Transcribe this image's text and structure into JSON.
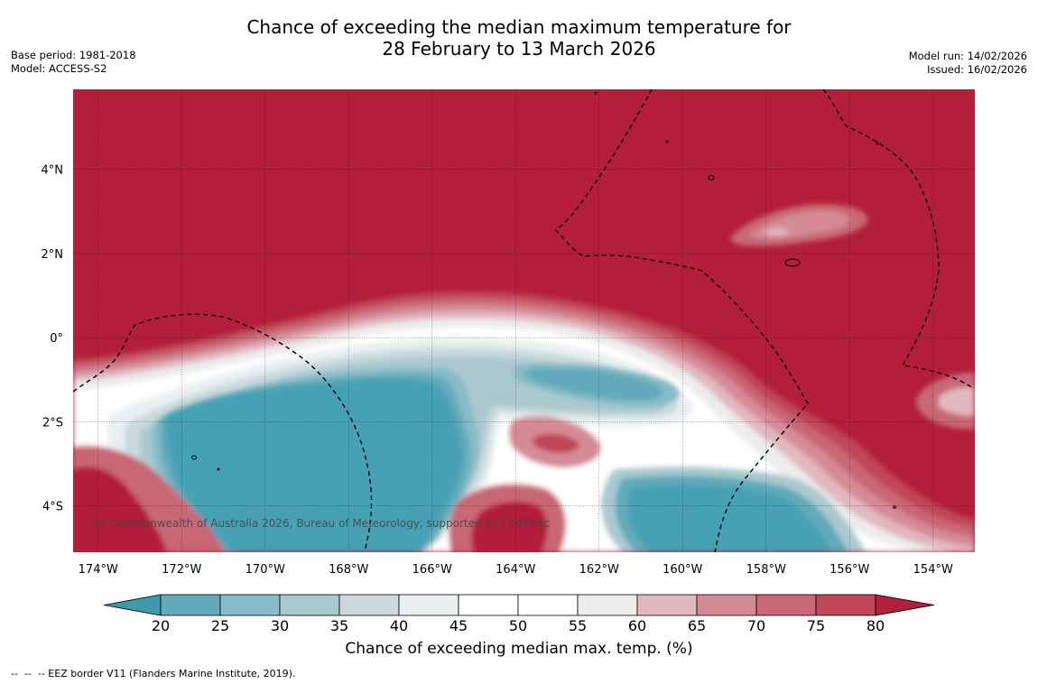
{
  "header": {
    "title_line1": "Chance of exceeding the median maximum temperature for",
    "title_line2": "28 February to 13 March 2026",
    "base_period": "Base period: 1981-2018",
    "model": "Model: ACCESS-S2",
    "model_run": "Model run: 14/02/2026",
    "issued": "Issued: 16/02/2026"
  },
  "map": {
    "lon_range": [
      -174.6,
      -153.0
    ],
    "lat_range": [
      -5.1,
      5.9
    ],
    "lon_ticks": [
      "174°W",
      "172°W",
      "170°W",
      "168°W",
      "166°W",
      "164°W",
      "162°W",
      "160°W",
      "158°W",
      "156°W",
      "154°W"
    ],
    "lon_tick_values": [
      -174,
      -172,
      -170,
      -168,
      -166,
      -164,
      -162,
      -160,
      -158,
      -156,
      -154
    ],
    "lat_ticks": [
      "4°N",
      "2°N",
      "0°",
      "2°S",
      "4°S"
    ],
    "lat_tick_values": [
      4,
      2,
      0,
      -2,
      -4
    ],
    "copyright": "© Commonwealth of Australia 2026, Bureau of Meteorology, supported by COSPPac",
    "colors": {
      "hot": "#b31e3a",
      "cool": "#46a1b4"
    }
  },
  "colorbar": {
    "ticks": [
      "20",
      "25",
      "30",
      "35",
      "40",
      "45",
      "50",
      "55",
      "60",
      "65",
      "70",
      "75",
      "80"
    ],
    "bins": [
      {
        "range": "<20",
        "color": "#3d99ac"
      },
      {
        "range": "20-25",
        "color": "#62aabb"
      },
      {
        "range": "25-30",
        "color": "#86bbc7"
      },
      {
        "range": "30-35",
        "color": "#aac9cf"
      },
      {
        "range": "35-40",
        "color": "#cbd9dd"
      },
      {
        "range": "40-45",
        "color": "#e8f0f1"
      },
      {
        "range": "45-50",
        "color": "#ffffff"
      },
      {
        "range": "50-55",
        "color": "#ffffff"
      },
      {
        "range": "55-60",
        "color": "#ececec"
      },
      {
        "range": "60-65",
        "color": "#e2b8bf"
      },
      {
        "range": "65-70",
        "color": "#d58b96"
      },
      {
        "range": "70-75",
        "color": "#c96874"
      },
      {
        "range": "75-80",
        "color": "#bf4757"
      },
      {
        "range": ">80",
        "color": "#b31e3a"
      }
    ],
    "label": "Chance of exceeding median max. temp. (%)"
  },
  "footer": {
    "legend": "--  --  -- EEZ border V11 (Flanders Marine Institute, 2019)."
  }
}
